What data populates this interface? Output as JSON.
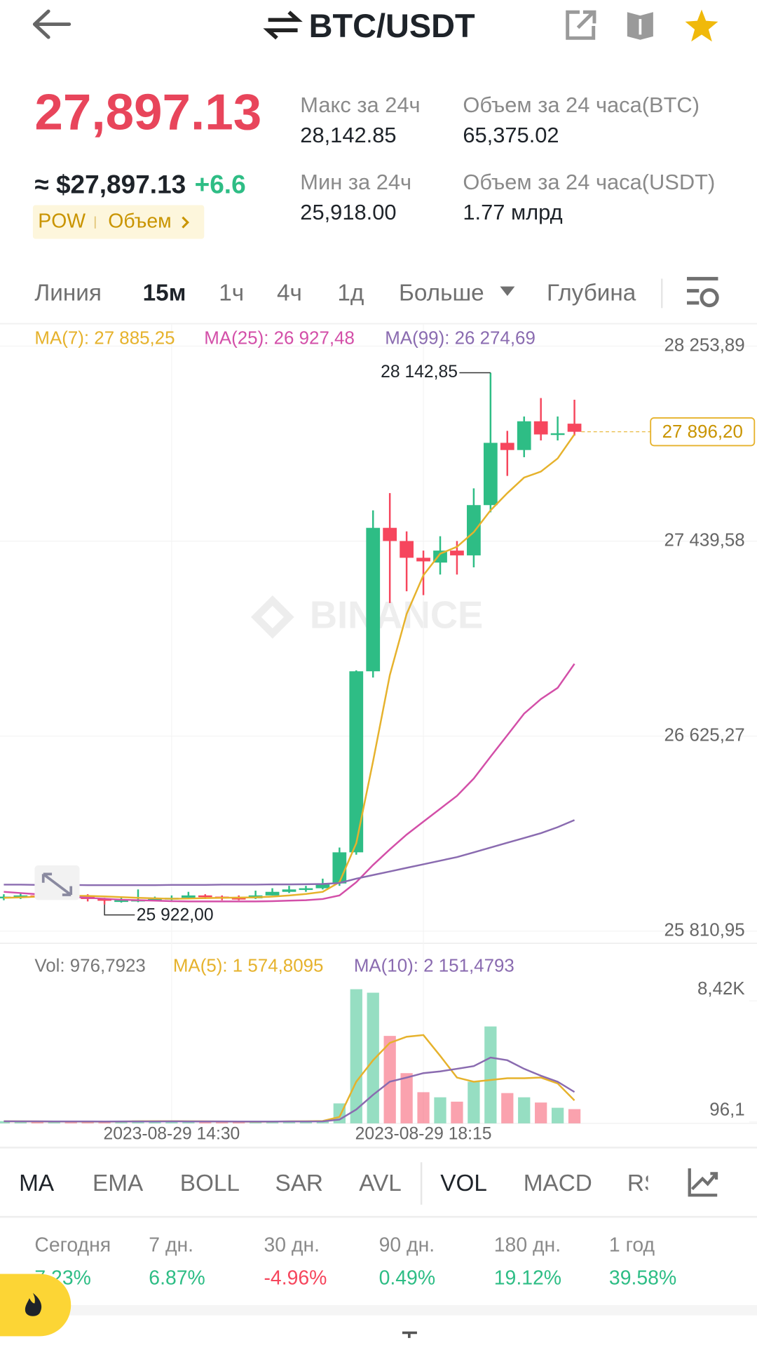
{
  "header": {
    "title": "BTC/USDT"
  },
  "price": {
    "last": "27,897.13",
    "usd": "≈ $27,897.13",
    "change": "+6.6",
    "tags": [
      "POW",
      "Объем"
    ]
  },
  "stats": [
    {
      "label": "Макс за 24ч",
      "value": "28,142.85"
    },
    {
      "label": "Мин за 24ч",
      "value": "25,918.00"
    },
    {
      "label": "Объем за 24 часа(BTC)",
      "value": "65,375.02"
    },
    {
      "label": "Объем за 24 часа(USDT)",
      "value": "1.77 млрд"
    }
  ],
  "timeframes": {
    "items": [
      "Линия",
      "15м",
      "1ч",
      "4ч",
      "1д",
      "Больше",
      "Глубина"
    ],
    "active": "15м"
  },
  "chart_data": {
    "type": "candlestick",
    "categories": [
      null,
      null,
      null,
      null,
      null,
      null,
      null,
      null,
      null,
      null,
      "2023-08-29 14:30",
      null,
      null,
      null,
      null,
      null,
      null,
      null,
      null,
      null,
      null,
      null,
      null,
      null,
      null,
      "2023-08-29 18:15",
      null,
      null,
      null,
      null,
      null,
      null,
      null,
      null,
      null
    ],
    "open": [
      25950,
      25955,
      25960,
      25958,
      25962,
      25960,
      25945,
      25938,
      25940,
      25942,
      25945,
      25950,
      25960,
      25955,
      25950,
      25948,
      25960,
      25975,
      25985,
      25990,
      26010,
      26140,
      26896,
      27495,
      27440,
      27370,
      27350,
      27400,
      27380,
      27590,
      27850,
      27820,
      27940,
      27885,
      27930
    ],
    "high": [
      25965,
      25970,
      25970,
      25972,
      25970,
      25965,
      25950,
      25950,
      25985,
      25955,
      25960,
      25975,
      25965,
      25960,
      25960,
      25980,
      25990,
      26000,
      26000,
      26030,
      26160,
      26900,
      27568,
      27640,
      27480,
      27400,
      27460,
      27440,
      27660,
      28142.85,
      27900,
      27960,
      28037,
      27960,
      28030
    ],
    "low": [
      25940,
      25945,
      25948,
      25950,
      25950,
      25935,
      25922,
      25930,
      25932,
      25935,
      25940,
      25945,
      25945,
      25940,
      25940,
      25945,
      25960,
      25970,
      25975,
      25985,
      26000,
      26130,
      26870,
      27181,
      27230,
      27214,
      27300,
      27300,
      27330,
      27560,
      27712,
      27790,
      27860,
      27860,
      27880
    ],
    "close": [
      25955,
      25960,
      25958,
      25962,
      25960,
      25945,
      25938,
      25940,
      25942,
      25945,
      25950,
      25960,
      25955,
      25950,
      25948,
      25960,
      25975,
      25985,
      25990,
      26010,
      26140,
      26896,
      27495,
      27440,
      27370,
      27355,
      27400,
      27380,
      27590,
      27850,
      27820,
      27940,
      27885,
      27890,
      27896.2
    ],
    "up_color": "#2ebd85",
    "down_color": "#f6465d",
    "ylim": [
      25760,
      28344
    ],
    "yticks": [
      {
        "value": 28253.89,
        "label": "28 253,89"
      },
      {
        "value": 27439.58,
        "label": "27 439,58"
      },
      {
        "value": 26625.27,
        "label": "26 625,27"
      },
      {
        "value": 25810.95,
        "label": "25 810,95"
      }
    ],
    "grid": true,
    "series": [
      {
        "legend": "MA(7): 27 885,25",
        "color": "#e6b22c",
        "values": [
          25950,
          25952,
          25955,
          25957,
          25958,
          25958,
          25956,
          25953,
          25950,
          25948,
          25946,
          25947,
          25949,
          25950,
          25951,
          25952,
          25955,
          25960,
          25966,
          25975,
          26015,
          26178,
          26520,
          26880,
          27135,
          27297,
          27387,
          27416,
          27477,
          27568,
          27640,
          27705,
          27730,
          27785,
          27885.25
        ]
      },
      {
        "legend": "MA(25): 26 927,48",
        "color": "#d34fa8",
        "values": [
          25975,
          25970,
          25965,
          25960,
          25955,
          25950,
          25946,
          25942,
          25940,
          25938,
          25936,
          25935,
          25935,
          25935,
          25935,
          25935,
          25936,
          25938,
          25940,
          25945,
          25960,
          26015,
          26087,
          26152,
          26214,
          26268,
          26322,
          26376,
          26448,
          26539,
          26629,
          26719,
          26780,
          26827,
          26927.48
        ]
      },
      {
        "legend": "MA(99): 26 274,69",
        "color": "#8a6bb0",
        "values": [
          26005,
          26005,
          26004,
          26004,
          26004,
          26003,
          26003,
          26003,
          26003,
          26003,
          26004,
          26004,
          26004,
          26005,
          26005,
          26005,
          26006,
          26006,
          26007,
          26008,
          26012,
          26030,
          26045,
          26060,
          26075,
          26090,
          26105,
          26120,
          26140,
          26160,
          26180,
          26200,
          26220,
          26245,
          26274.69
        ]
      }
    ],
    "max_label": "28 142,85",
    "min_label": "25 922,00",
    "last_price": {
      "value": 27896.2,
      "label": "27 896,20"
    },
    "volume": {
      "legend": "Vol: 976,7923",
      "legend_color": "#777777",
      "ylim": [
        0,
        9400
      ],
      "yticks": [
        {
          "value": 8420,
          "label": "8,42K"
        },
        {
          "value": 96.1,
          "label": "96,1"
        }
      ],
      "values": [
        150,
        120,
        100,
        130,
        110,
        90,
        140,
        160,
        200,
        150,
        120,
        100,
        110,
        130,
        90,
        120,
        160,
        180,
        150,
        200,
        1370,
        9220,
        8980,
        6010,
        3450,
        2140,
        1790,
        1490,
        2860,
        6660,
        2080,
        1790,
        1430,
        1070,
        976.7923
      ],
      "series": [
        {
          "legend": "MA(5): 1 574,8095",
          "color": "#e6b22c",
          "values": [
            140,
            135,
            130,
            125,
            122,
            120,
            118,
            125,
            140,
            150,
            150,
            140,
            135,
            125,
            120,
            115,
            120,
            135,
            145,
            160,
            440,
            2860,
            4340,
            5530,
            5950,
            6070,
            4640,
            3150,
            2860,
            2980,
            3100,
            3100,
            3150,
            2740,
            1574.8095
          ]
        },
        {
          "legend": "MA(10): 2 151,4793",
          "color": "#8a6bb0",
          "values": [
            140,
            138,
            135,
            132,
            130,
            128,
            127,
            128,
            130,
            132,
            134,
            132,
            130,
            128,
            126,
            124,
            125,
            128,
            132,
            138,
            260,
            950,
            1960,
            2860,
            3150,
            3450,
            3570,
            3750,
            3930,
            4520,
            4340,
            3750,
            3270,
            2860,
            2151.4793
          ]
        }
      ]
    }
  },
  "indicators": {
    "items": [
      "MA",
      "EMA",
      "BOLL",
      "SAR",
      "AVL",
      "VOL",
      "MACD",
      "RSI"
    ],
    "active": [
      "MA",
      "VOL"
    ]
  },
  "performance": [
    {
      "label": "Сегодня",
      "value": "7.23%"
    },
    {
      "label": "7 дн.",
      "value": "6.87%"
    },
    {
      "label": "30 дн.",
      "value": "-4.96%"
    },
    {
      "label": "90 дн.",
      "value": "0.49%"
    },
    {
      "label": "180 дн.",
      "value": "19.12%"
    },
    {
      "label": "1 год",
      "value": "39.58%"
    }
  ],
  "watermark": "BINANCE"
}
